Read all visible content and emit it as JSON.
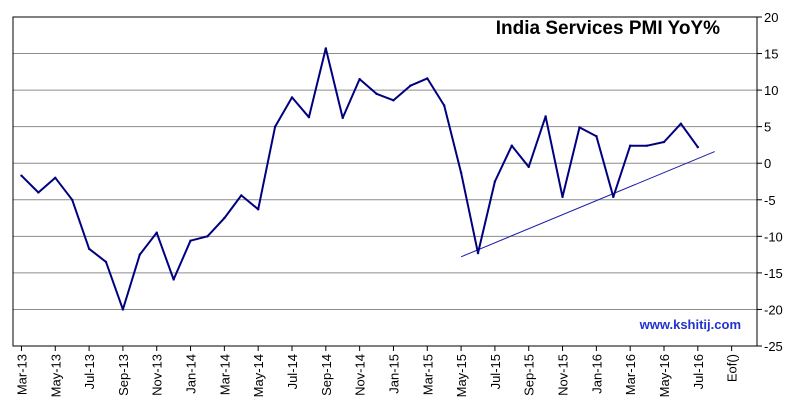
{
  "chart_data": {
    "type": "line",
    "title": "India Services PMI YoY%",
    "watermark": "www.kshitij.com",
    "ylim": [
      -25,
      20
    ],
    "y_ticks": [
      20,
      15,
      10,
      5,
      0,
      -5,
      -10,
      -15,
      -20,
      -25
    ],
    "y_axis_position": "right",
    "grid": true,
    "x_tick_labels": [
      "Mar-13",
      "May-13",
      "Jul-13",
      "Sep-13",
      "Nov-13",
      "Jan-14",
      "Mar-14",
      "May-14",
      "Jul-14",
      "Sep-14",
      "Nov-14",
      "Jan-15",
      "Mar-15",
      "May-15",
      "Jul-15",
      "Sep-15",
      "Nov-15",
      "Jan-16",
      "Mar-16",
      "May-16",
      "Jul-16",
      "Eof()"
    ],
    "x_tick_every": 2,
    "x": [
      "Mar-13",
      "Apr-13",
      "May-13",
      "Jun-13",
      "Jul-13",
      "Aug-13",
      "Sep-13",
      "Oct-13",
      "Nov-13",
      "Dec-13",
      "Jan-14",
      "Feb-14",
      "Mar-14",
      "Apr-14",
      "May-14",
      "Jun-14",
      "Jul-14",
      "Aug-14",
      "Sep-14",
      "Oct-14",
      "Nov-14",
      "Dec-14",
      "Jan-15",
      "Feb-15",
      "Mar-15",
      "Apr-15",
      "May-15",
      "Jun-15",
      "Jul-15",
      "Aug-15",
      "Sep-15",
      "Oct-15",
      "Nov-15",
      "Dec-15",
      "Jan-16",
      "Feb-16",
      "Mar-16",
      "Apr-16",
      "May-16",
      "Jun-16",
      "Jul-16"
    ],
    "series": [
      {
        "color": "#000080",
        "values": [
          -1.7,
          -4.0,
          -2.0,
          -5.0,
          -11.7,
          -13.5,
          -20.0,
          -12.5,
          -9.5,
          -15.9,
          -10.6,
          -10.0,
          -7.5,
          -4.4,
          -6.3,
          5.0,
          9.0,
          6.3,
          15.7,
          6.2,
          11.5,
          9.5,
          8.6,
          10.6,
          11.6,
          7.9,
          -1.3,
          -12.3,
          -2.5,
          2.4,
          -0.5,
          6.4,
          -4.6,
          4.9,
          3.7,
          -4.6,
          2.4,
          2.4,
          2.9,
          5.4,
          2.2
        ]
      }
    ],
    "trendline": {
      "color": "#1a1aaa",
      "start": {
        "x": "May-15",
        "y": -12.8
      },
      "end": {
        "x": "Aug-16",
        "y": 1.6
      }
    }
  }
}
